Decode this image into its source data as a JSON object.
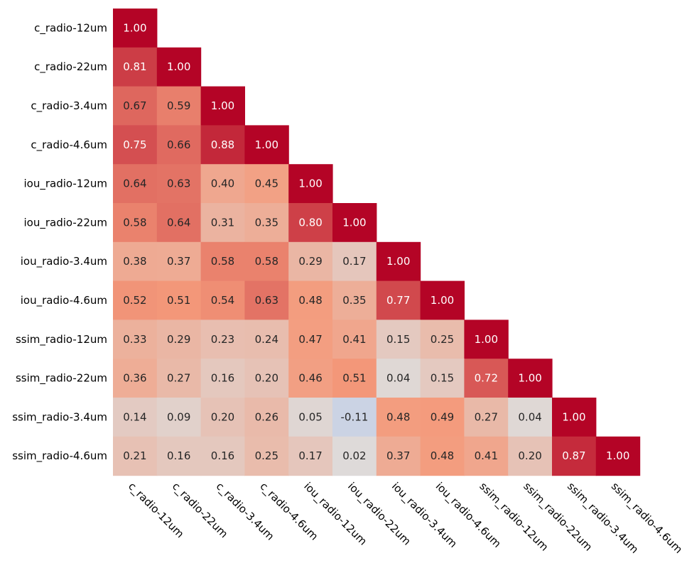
{
  "chart_data": {
    "type": "heatmap",
    "subtype": "lower-triangular correlation matrix",
    "title": "",
    "xlabel": "",
    "ylabel": "",
    "colormap": "coolwarm",
    "vmin": -1,
    "vmax": 1,
    "colorbar": false,
    "value_format": "2 decimals",
    "labels": [
      "c_radio-12um",
      "c_radio-22um",
      "c_radio-3.4um",
      "c_radio-4.6um",
      "iou_radio-12um",
      "iou_radio-22um",
      "iou_radio-3.4um",
      "iou_radio-4.6um",
      "ssim_radio-12um",
      "ssim_radio-22um",
      "ssim_radio-3.4um",
      "ssim_radio-4.6um"
    ],
    "matrix": [
      [
        1.0
      ],
      [
        0.81,
        1.0
      ],
      [
        0.67,
        0.59,
        1.0
      ],
      [
        0.75,
        0.66,
        0.88,
        1.0
      ],
      [
        0.64,
        0.63,
        0.4,
        0.45,
        1.0
      ],
      [
        0.58,
        0.64,
        0.31,
        0.35,
        0.8,
        1.0
      ],
      [
        0.38,
        0.37,
        0.58,
        0.58,
        0.29,
        0.17,
        1.0
      ],
      [
        0.52,
        0.51,
        0.54,
        0.63,
        0.48,
        0.35,
        0.77,
        1.0
      ],
      [
        0.33,
        0.29,
        0.23,
        0.24,
        0.47,
        0.41,
        0.15,
        0.25,
        1.0
      ],
      [
        0.36,
        0.27,
        0.16,
        0.2,
        0.46,
        0.51,
        0.04,
        0.15,
        0.72,
        1.0
      ],
      [
        0.14,
        0.09,
        0.2,
        0.26,
        0.05,
        -0.11,
        0.48,
        0.49,
        0.27,
        0.04,
        1.0
      ],
      [
        0.21,
        0.16,
        0.16,
        0.25,
        0.17,
        0.02,
        0.37,
        0.48,
        0.41,
        0.2,
        0.87,
        1.0
      ]
    ]
  }
}
